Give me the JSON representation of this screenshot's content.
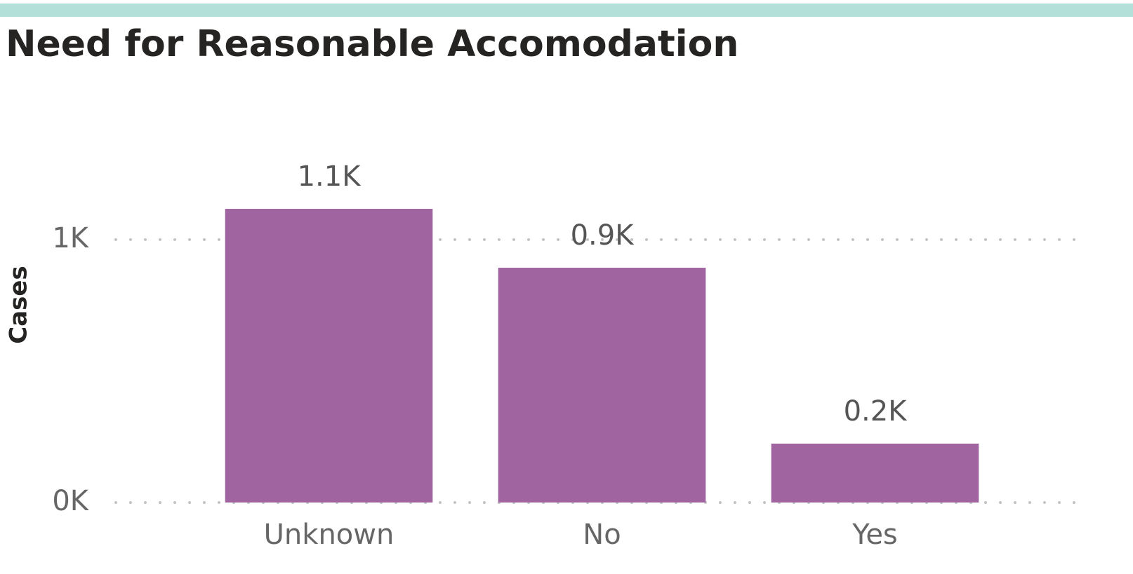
{
  "chart_data": {
    "type": "bar",
    "title": "Need for Reasonable Accomodation",
    "y_label": "Cases",
    "categories": [
      "Unknown",
      "No",
      "Yes"
    ],
    "values": [
      1117,
      893,
      224
    ],
    "value_labels": [
      "1.1K",
      "0.9K",
      "0.2K"
    ],
    "color": "#a064a0",
    "ylim": [
      0,
      1485
    ],
    "yticks": [
      {
        "value": 0,
        "label": "0K"
      },
      {
        "value": 1000,
        "label": "1K"
      }
    ],
    "grid": true
  }
}
